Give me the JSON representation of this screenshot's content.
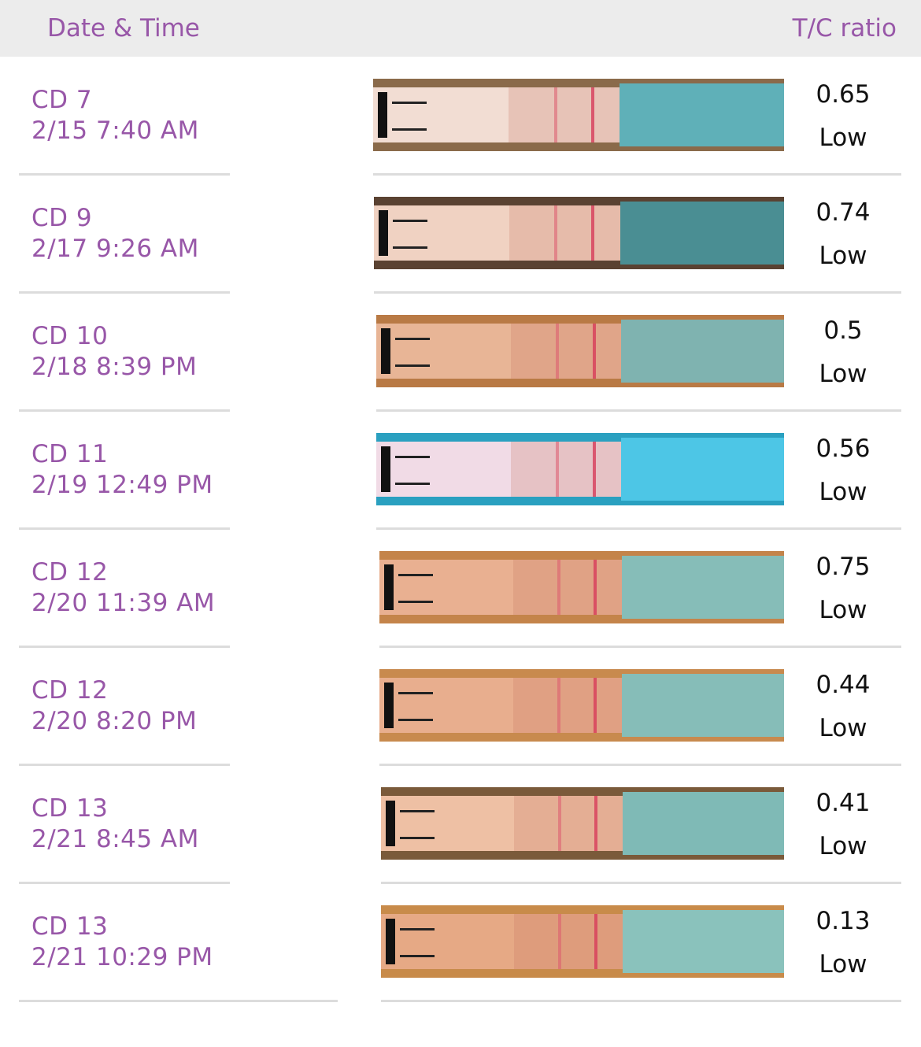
{
  "header": {
    "date_time": "Date & Time",
    "ratio": "T/C ratio"
  },
  "rows": [
    {
      "cycle_day": "CD 7",
      "datetime": "2/15 7:40 AM",
      "ratio": 0.65,
      "level": "Low"
    },
    {
      "cycle_day": "CD 9",
      "datetime": "2/17 9:26 AM",
      "ratio": 0.74,
      "level": "Low"
    },
    {
      "cycle_day": "CD 10",
      "datetime": "2/18 8:39 PM",
      "ratio": 0.5,
      "level": "Low"
    },
    {
      "cycle_day": "CD 11",
      "datetime": "2/19 12:49 PM",
      "ratio": 0.56,
      "level": "Low"
    },
    {
      "cycle_day": "CD 12",
      "datetime": "2/20 11:39 AM",
      "ratio": 0.75,
      "level": "Low"
    },
    {
      "cycle_day": "CD 12",
      "datetime": "2/20 8:20 PM",
      "ratio": 0.44,
      "level": "Low"
    },
    {
      "cycle_day": "CD 13",
      "datetime": "2/21 8:45 AM",
      "ratio": 0.41,
      "level": "Low"
    },
    {
      "cycle_day": "CD 13",
      "datetime": "2/21 10:29 PM",
      "ratio": 0.13,
      "level": "Low"
    }
  ]
}
